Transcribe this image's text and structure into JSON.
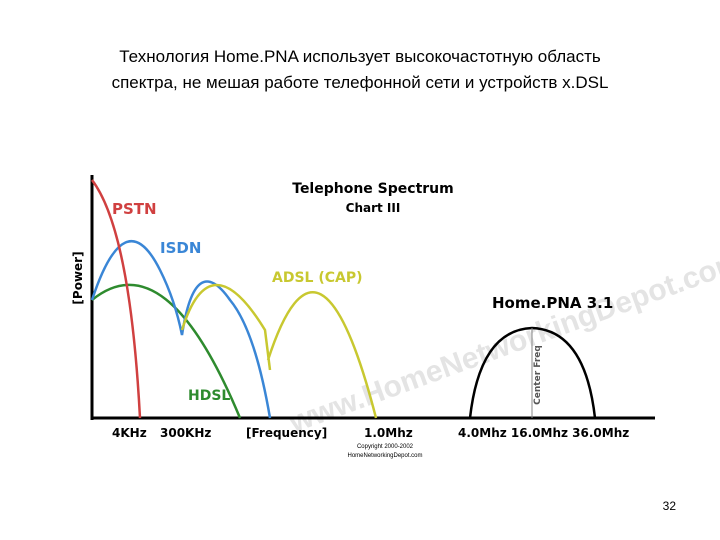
{
  "slide": {
    "title_lines": [
      "Технология Home.PNA использует высокочастотную область",
      "спектра, не мешая работе телефонной сети и устройств x.DSL"
    ],
    "page_number": "32"
  },
  "diagram": {
    "title": "Telephone Spectrum",
    "subtitle": "Chart III",
    "y_axis_label": "[Power]",
    "x_axis_label": "[Frequency]",
    "curves": {
      "pstn": "PSTN",
      "isdn": "ISDN",
      "adsl": "ADSL (CAP)",
      "hdsl": "HDSL",
      "homepna": "Home.PNA 3.1"
    },
    "x_labels": [
      "4KHz",
      "300KHz",
      "1.0Mhz",
      "4.0Mhz 16.0Mhz 36.0Mhz"
    ],
    "center_freq": "Center Freq",
    "watermark": "www.HomeNetworkingDepot.com",
    "copyright": [
      "Copyright 2000-2002",
      "HomeNetworkingDepot.com"
    ]
  }
}
